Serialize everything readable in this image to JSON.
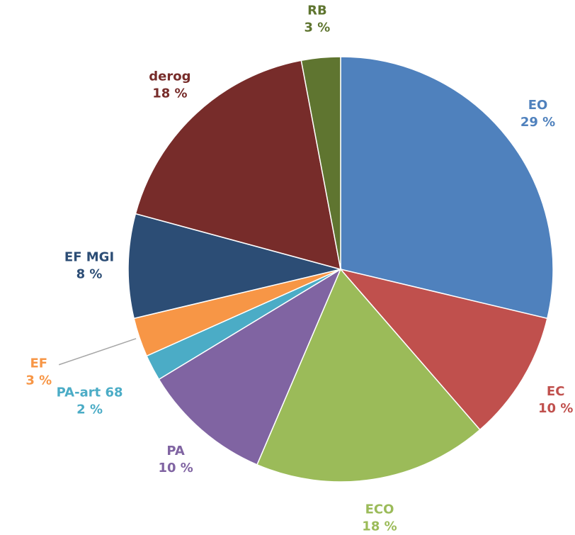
{
  "chart_data": {
    "type": "pie",
    "categories": [
      "EO",
      "EC",
      "ECO",
      "PA",
      "PA-art 68",
      "EF",
      "EF MGI",
      "derog",
      "RB"
    ],
    "values": [
      29,
      10,
      18,
      10,
      2,
      3,
      8,
      18,
      3
    ],
    "value_labels": [
      "29 %",
      "10 %",
      "18 %",
      "10 %",
      "2 %",
      "3 %",
      "8 %",
      "18 %",
      "3 %"
    ],
    "colors": [
      "#4f81bd",
      "#c0504d",
      "#9bbb59",
      "#8064a2",
      "#4bacc6",
      "#f79646",
      "#2c4d75",
      "#772c2a",
      "#5f7530"
    ]
  }
}
